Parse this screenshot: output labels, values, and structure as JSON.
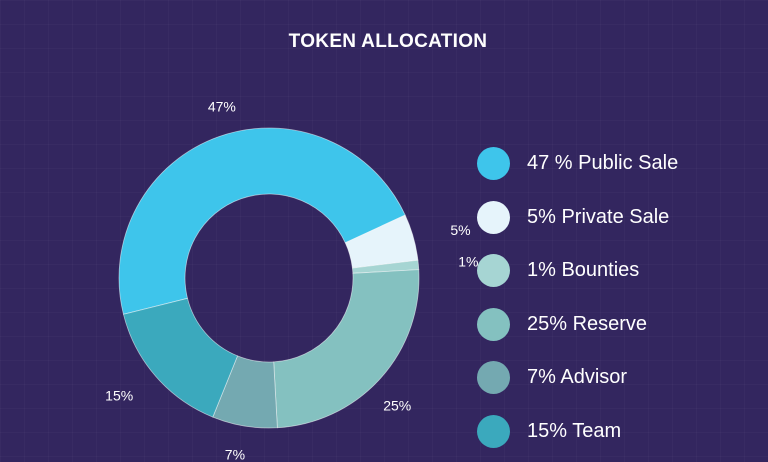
{
  "chart_data": {
    "type": "pie",
    "title": "TOKEN ALLOCATION",
    "donut": true,
    "slices": [
      {
        "label": "47 % Public Sale",
        "value": 47,
        "display": "47%",
        "color": "#3ec5eb"
      },
      {
        "label": "5% Private Sale",
        "value": 5,
        "display": "5%",
        "color": "#e6f4fb"
      },
      {
        "label": "1% Bounties",
        "value": 1,
        "display": "1%",
        "color": "#a6d5d3"
      },
      {
        "label": "25% Reserve",
        "value": 25,
        "display": "25%",
        "color": "#84c1c0"
      },
      {
        "label": "7% Advisor",
        "value": 7,
        "display": "7%",
        "color": "#74a9b1"
      },
      {
        "label": "15% Team",
        "value": 15,
        "display": "15%",
        "color": "#3ba9bd"
      }
    ],
    "legend_position": "right"
  }
}
